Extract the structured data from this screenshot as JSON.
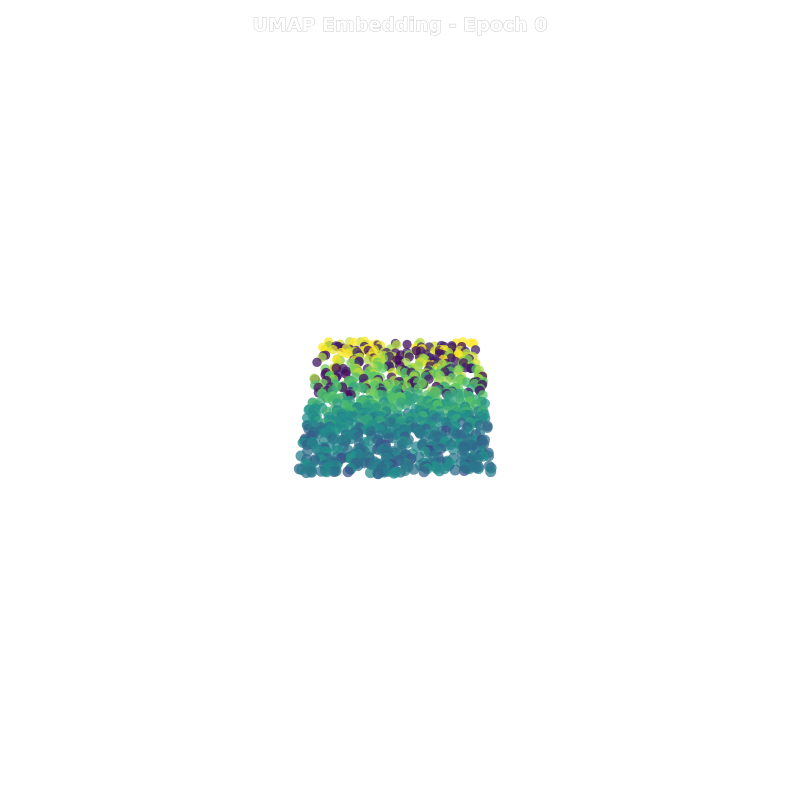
{
  "chart_data": {
    "type": "scatter",
    "title": "UMAP Embedding - Epoch 0",
    "xlabel": "",
    "ylabel": "",
    "axes_visible": false,
    "grid": false,
    "legend": "none",
    "colormap": "viridis",
    "colormap_stops": [
      "#440154",
      "#3b528b",
      "#21918c",
      "#5ec962",
      "#fde725"
    ],
    "point_opacity": 0.75,
    "point_count": 1000,
    "xlim": [
      -6,
      6
    ],
    "ylim": [
      -6,
      6
    ],
    "cloud": {
      "x_range_top": [
        -1.6,
        1.6
      ],
      "x_range_bottom": [
        -2.05,
        1.85
      ],
      "y_range": [
        -1.45,
        1.15
      ]
    }
  }
}
